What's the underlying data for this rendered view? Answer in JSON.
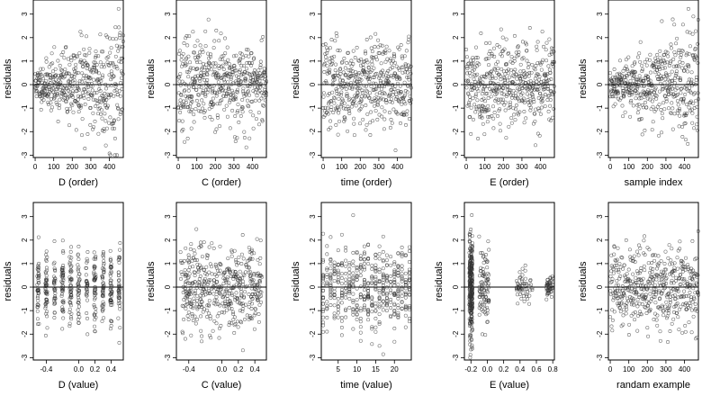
{
  "chart_data": [
    {
      "type": "scatter",
      "xlabel": "D (order)",
      "ylabel": "residuals",
      "xlim": [
        -10,
        475
      ],
      "ylim": [
        -3.1,
        3.6
      ],
      "xticks": [
        0,
        100,
        200,
        300,
        400
      ],
      "xtick_labels": [
        "0",
        "100",
        "200",
        "300",
        "400"
      ],
      "yticks": [
        -3,
        -2,
        -1,
        0,
        1,
        2,
        3
      ],
      "ytick_labels": [
        "-3",
        "-2",
        "-1",
        "0",
        "1",
        "2",
        "3"
      ],
      "hline": 0,
      "point_color": "#333333",
      "points": {
        "mode": "order",
        "n": 480,
        "seed": 11,
        "spread": 0.7,
        "heteroscedastic": true
      }
    },
    {
      "type": "scatter",
      "xlabel": "C (order)",
      "ylabel": "residuals",
      "xlim": [
        -10,
        475
      ],
      "ylim": [
        -3.1,
        3.6
      ],
      "xticks": [
        0,
        100,
        200,
        300,
        400
      ],
      "xtick_labels": [
        "0",
        "100",
        "200",
        "300",
        "400"
      ],
      "yticks": [
        -3,
        -2,
        -1,
        0,
        1,
        2,
        3
      ],
      "ytick_labels": [
        "-3",
        "-2",
        "-1",
        "0",
        "1",
        "2",
        "3"
      ],
      "hline": 0,
      "point_color": "#333333",
      "points": {
        "mode": "order",
        "n": 480,
        "seed": 23,
        "spread": 0.9,
        "heteroscedastic": false
      }
    },
    {
      "type": "scatter",
      "xlabel": "time (order)",
      "ylabel": "residuals",
      "xlim": [
        -10,
        475
      ],
      "ylim": [
        -3.1,
        3.6
      ],
      "xticks": [
        0,
        100,
        200,
        300,
        400
      ],
      "xtick_labels": [
        "0",
        "100",
        "200",
        "300",
        "400"
      ],
      "yticks": [
        -3,
        -2,
        -1,
        0,
        1,
        2,
        3
      ],
      "ytick_labels": [
        "-3",
        "-2",
        "-1",
        "0",
        "1",
        "2",
        "3"
      ],
      "hline": 0,
      "point_color": "#333333",
      "points": {
        "mode": "order",
        "n": 480,
        "seed": 37,
        "spread": 0.9,
        "heteroscedastic": false
      }
    },
    {
      "type": "scatter",
      "xlabel": "E (order)",
      "ylabel": "residuals",
      "xlim": [
        -10,
        475
      ],
      "ylim": [
        -3.1,
        3.6
      ],
      "xticks": [
        0,
        100,
        200,
        300,
        400
      ],
      "xtick_labels": [
        "0",
        "100",
        "200",
        "300",
        "400"
      ],
      "yticks": [
        -3,
        -2,
        -1,
        0,
        1,
        2,
        3
      ],
      "ytick_labels": [
        "-3",
        "-2",
        "-1",
        "0",
        "1",
        "2",
        "3"
      ],
      "hline": 0,
      "point_color": "#333333",
      "points": {
        "mode": "order",
        "n": 480,
        "seed": 41,
        "spread": 0.9,
        "heteroscedastic": false
      }
    },
    {
      "type": "scatter",
      "xlabel": "sample index",
      "ylabel": "residuals",
      "xlim": [
        -10,
        475
      ],
      "ylim": [
        -3.1,
        3.6
      ],
      "xticks": [
        0,
        100,
        200,
        300,
        400
      ],
      "xtick_labels": [
        "0",
        "100",
        "200",
        "300",
        "400"
      ],
      "yticks": [
        -3,
        -2,
        -1,
        0,
        1,
        2,
        3
      ],
      "ytick_labels": [
        "-3",
        "-2",
        "-1",
        "0",
        "1",
        "2",
        "3"
      ],
      "hline": 0,
      "point_color": "#333333",
      "points": {
        "mode": "order",
        "n": 480,
        "seed": 53,
        "spread": 0.85,
        "heteroscedastic": true
      }
    },
    {
      "type": "scatter",
      "xlabel": "D (value)",
      "ylabel": "residuals",
      "xlim": [
        -0.56,
        0.55
      ],
      "ylim": [
        -3.1,
        3.6
      ],
      "xticks": [
        -0.4,
        0.0,
        0.2,
        0.4
      ],
      "xtick_labels": [
        "-0.4",
        "0.0",
        "0.2",
        "0.4"
      ],
      "yticks": [
        -3,
        -2,
        -1,
        0,
        1,
        2,
        3
      ],
      "ytick_labels": [
        "-3",
        "-2",
        "-1",
        "0",
        "1",
        "2",
        "3"
      ],
      "hline": 0,
      "point_color": "#333333",
      "points": {
        "mode": "levels",
        "n": 480,
        "seed": 61,
        "levels": [
          -0.5,
          -0.4,
          -0.3,
          -0.2,
          -0.1,
          0.0,
          0.1,
          0.2,
          0.3,
          0.4,
          0.5
        ],
        "jitter": 0.012,
        "spread": 0.8
      }
    },
    {
      "type": "scatter",
      "xlabel": "C (value)",
      "ylabel": "residuals",
      "xlim": [
        -0.55,
        0.54
      ],
      "ylim": [
        -3.1,
        3.6
      ],
      "xticks": [
        -0.4,
        0.0,
        0.2,
        0.4
      ],
      "xtick_labels": [
        "-0.4",
        "0.0",
        "0.2",
        "0.4"
      ],
      "yticks": [
        -3,
        -2,
        -1,
        0,
        1,
        2,
        3
      ],
      "ytick_labels": [
        "-3",
        "-2",
        "-1",
        "0",
        "1",
        "2",
        "3"
      ],
      "hline": 0,
      "point_color": "#333333",
      "points": {
        "mode": "uniform",
        "n": 480,
        "seed": 71,
        "spread": 0.85
      }
    },
    {
      "type": "scatter",
      "xlabel": "time (value)",
      "ylabel": "residuals",
      "xlim": [
        0.5,
        24.5
      ],
      "ylim": [
        -3.1,
        3.6
      ],
      "xticks": [
        5,
        10,
        15,
        20
      ],
      "xtick_labels": [
        "5",
        "10",
        "15",
        "20"
      ],
      "yticks": [
        -3,
        -2,
        -1,
        0,
        1,
        2,
        3
      ],
      "ytick_labels": [
        "-3",
        "-2",
        "-1",
        "0",
        "1",
        "2",
        "3"
      ],
      "hline": 0,
      "point_color": "#333333",
      "points": {
        "mode": "levels",
        "n": 480,
        "seed": 83,
        "levels": [
          1,
          2,
          3,
          4,
          5,
          6,
          7,
          8,
          9,
          10,
          11,
          12,
          13,
          14,
          15,
          16,
          17,
          18,
          19,
          20,
          21,
          22,
          23,
          24
        ],
        "jitter": 0.0,
        "spread": 0.9
      }
    },
    {
      "type": "scatter",
      "xlabel": "E (value)",
      "ylabel": "residuals",
      "xlim": [
        -0.28,
        0.82
      ],
      "ylim": [
        -3.1,
        3.6
      ],
      "xticks": [
        -0.2,
        0.0,
        0.2,
        0.4,
        0.6,
        0.8
      ],
      "xtick_labels": [
        "-0.2",
        "0.0",
        "0.2",
        "0.4",
        "0.6",
        "0.8"
      ],
      "yticks": [
        -3,
        -2,
        -1,
        0,
        1,
        2,
        3
      ],
      "ytick_labels": [
        "-3",
        "-2",
        "-1",
        "0",
        "1",
        "2",
        "3"
      ],
      "hline": 0,
      "point_color": "#333333",
      "points": {
        "mode": "clustered",
        "n": 480,
        "seed": 97,
        "spread": 0.9
      }
    },
    {
      "type": "scatter",
      "xlabel": "randam example",
      "ylabel": "residuals",
      "xlim": [
        -10,
        475
      ],
      "ylim": [
        -3.1,
        3.6
      ],
      "xticks": [
        0,
        100,
        200,
        300,
        400
      ],
      "xtick_labels": [
        "0",
        "100",
        "200",
        "300",
        "400"
      ],
      "yticks": [
        -3,
        -2,
        -1,
        0,
        1,
        2,
        3
      ],
      "ytick_labels": [
        "-3",
        "-2",
        "-1",
        "0",
        "1",
        "2",
        "3"
      ],
      "hline": 0,
      "point_color": "#333333",
      "points": {
        "mode": "order",
        "n": 480,
        "seed": 101,
        "spread": 0.85,
        "heteroscedastic": false
      }
    }
  ]
}
